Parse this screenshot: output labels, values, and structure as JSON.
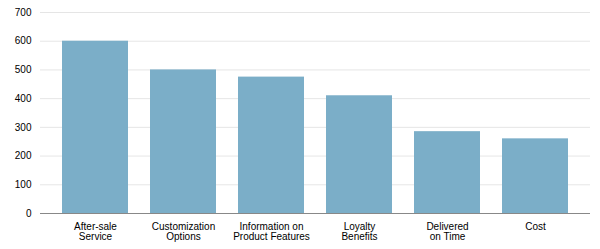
{
  "chart_data": {
    "type": "bar",
    "categories": [
      "After-sale\nService",
      "Customization\nOptions",
      "Information on\nProduct Features",
      "Loyalty\nBenefits",
      "Delivered\non Time",
      "Cost"
    ],
    "values": [
      600,
      500,
      475,
      410,
      285,
      260
    ],
    "color": "#7baec8",
    "ylim": [
      0,
      700
    ],
    "yticks": [
      0,
      100,
      200,
      300,
      400,
      500,
      600,
      700
    ],
    "grid": true
  }
}
